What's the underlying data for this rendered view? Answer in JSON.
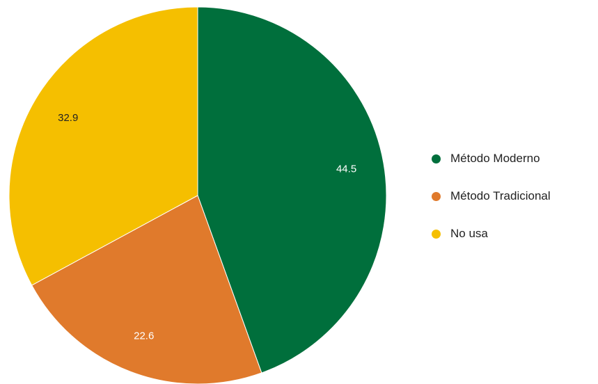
{
  "chart_data": {
    "type": "pie",
    "title": "",
    "categories": [
      "Método Moderno",
      "Método Tradicional",
      "No usa"
    ],
    "values": [
      44.5,
      22.6,
      32.9
    ],
    "value_labels": [
      "44.5",
      "22.6",
      "32.9"
    ],
    "colors": [
      "#006F3C",
      "#E07A2C",
      "#F5BF00"
    ],
    "label_colors": [
      "#ffffff",
      "#ffffff",
      "#222222"
    ],
    "start_angle_deg": 0,
    "direction": "clockwise",
    "legend_position": "right"
  }
}
